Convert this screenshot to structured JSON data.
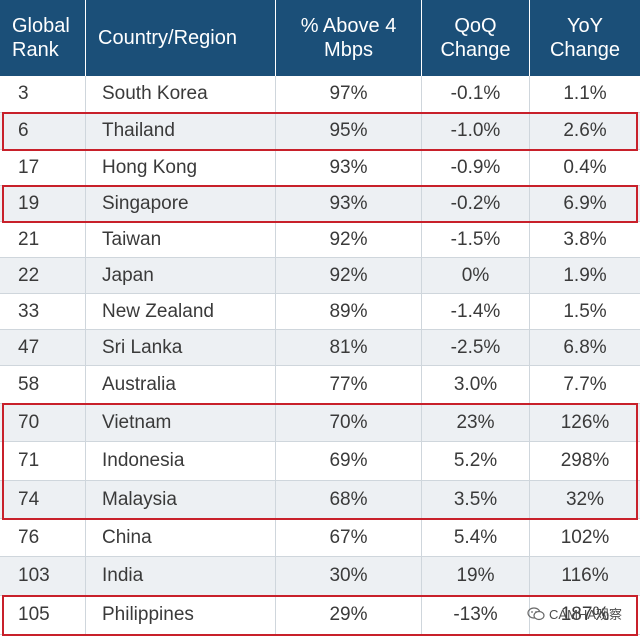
{
  "headers": {
    "rank": "Global Rank",
    "country": "Country/Region",
    "above": "% Above 4 Mbps",
    "qoq": "QoQ Change",
    "yoy": "YoY Change"
  },
  "rows": [
    {
      "rank": "3",
      "country": "South Korea",
      "above": "97%",
      "qoq": "-0.1%",
      "yoy": "1.1%"
    },
    {
      "rank": "6",
      "country": "Thailand",
      "above": "95%",
      "qoq": "-1.0%",
      "yoy": "2.6%"
    },
    {
      "rank": "17",
      "country": "Hong Kong",
      "above": "93%",
      "qoq": "-0.9%",
      "yoy": "0.4%"
    },
    {
      "rank": "19",
      "country": "Singapore",
      "above": "93%",
      "qoq": "-0.2%",
      "yoy": "6.9%"
    },
    {
      "rank": "21",
      "country": "Taiwan",
      "above": "92%",
      "qoq": "-1.5%",
      "yoy": "3.8%"
    },
    {
      "rank": "22",
      "country": "Japan",
      "above": "92%",
      "qoq": "0%",
      "yoy": "1.9%"
    },
    {
      "rank": "33",
      "country": "New Zealand",
      "above": "89%",
      "qoq": "-1.4%",
      "yoy": "1.5%"
    },
    {
      "rank": "47",
      "country": "Sri Lanka",
      "above": "81%",
      "qoq": "-2.5%",
      "yoy": "6.8%"
    },
    {
      "rank": "58",
      "country": "Australia",
      "above": "77%",
      "qoq": "3.0%",
      "yoy": "7.7%"
    },
    {
      "rank": "70",
      "country": "Vietnam",
      "above": "70%",
      "qoq": "23%",
      "yoy": "126%"
    },
    {
      "rank": "71",
      "country": "Indonesia",
      "above": "69%",
      "qoq": "5.2%",
      "yoy": "298%"
    },
    {
      "rank": "74",
      "country": "Malaysia",
      "above": "68%",
      "qoq": "3.5%",
      "yoy": "32%"
    },
    {
      "rank": "76",
      "country": "China",
      "above": "67%",
      "qoq": "5.4%",
      "yoy": "102%"
    },
    {
      "rank": "103",
      "country": "India",
      "above": "30%",
      "qoq": "19%",
      "yoy": "116%"
    },
    {
      "rank": "105",
      "country": "Philippines",
      "above": "29%",
      "qoq": "-13%",
      "yoy": "187%"
    }
  ],
  "highlight_groups": [
    {
      "label": "Thailand",
      "rows": [
        1
      ]
    },
    {
      "label": "Singapore",
      "rows": [
        3
      ]
    },
    {
      "label": "Vietnam-Indonesia-Malaysia",
      "rows": [
        9,
        10,
        11
      ]
    },
    {
      "label": "Philippines",
      "rows": [
        14
      ]
    }
  ],
  "colors": {
    "header_bg": "#1b4f78",
    "header_text": "#ffffff",
    "row_alt": "#edf0f3",
    "highlight": "#c8202a"
  },
  "watermark": {
    "text": "CAMHA观察",
    "icon": "wechat-icon"
  }
}
